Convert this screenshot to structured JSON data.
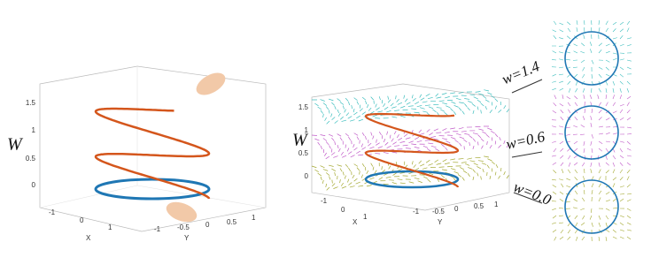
{
  "left_panel": {
    "z_label": "W",
    "z_ticks": [
      "1.5",
      "1",
      "0.5",
      "0"
    ],
    "x_label": "X",
    "x_ticks": [
      "-1",
      "0",
      "1"
    ],
    "y_label": "Y",
    "y_ticks": [
      "-1",
      "-0.5",
      "0",
      "0.5",
      "1"
    ]
  },
  "middle_panel": {
    "z_label": "W",
    "z_ticks": [
      "1.5",
      "1",
      "0.5",
      "0"
    ],
    "x_label": "X",
    "x_ticks": [
      "-1",
      "0",
      "1"
    ],
    "y_label": "Y",
    "y_ticks": [
      "-1",
      "-0.5",
      "0",
      "0.5",
      "1"
    ]
  },
  "slices": [
    {
      "label": "w=1.4"
    },
    {
      "label": "w=0.6"
    },
    {
      "label": "w=0.0"
    }
  ]
}
